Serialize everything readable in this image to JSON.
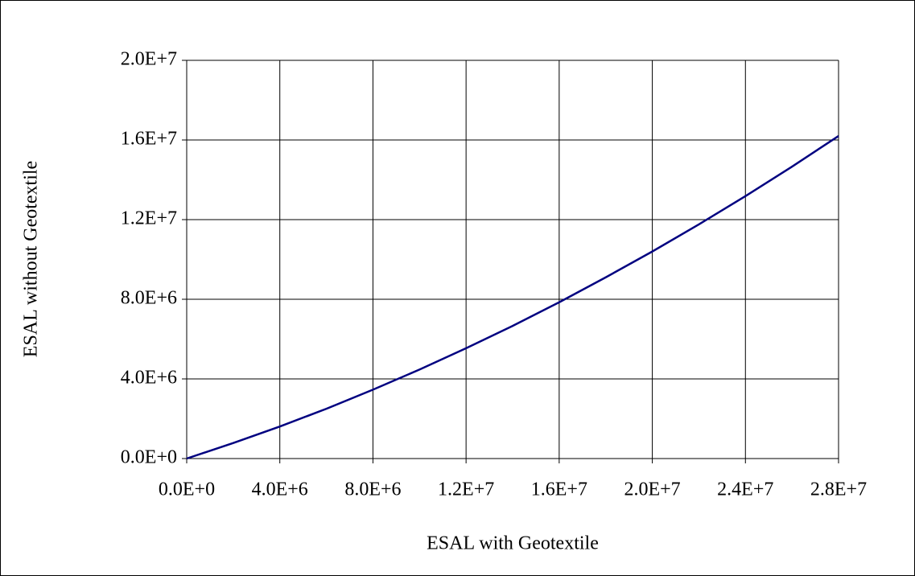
{
  "chart_data": {
    "type": "line",
    "x_label": "ESAL with Geotextile",
    "y_label": "ESAL without Geotextile",
    "x": [
      0,
      2000000,
      4000000,
      6000000,
      8000000,
      10000000,
      12000000,
      14000000,
      16000000,
      18000000,
      20000000,
      22000000,
      24000000,
      26000000,
      28000000
    ],
    "series": [
      {
        "color": "#000080",
        "values": [
          0,
          780000,
          1610000,
          2500000,
          3460000,
          4470000,
          5540000,
          6660000,
          7850000,
          9100000,
          10400000,
          11760000,
          13180000,
          14660000,
          16200000
        ]
      }
    ],
    "xlim": [
      0,
      28000000
    ],
    "ylim": [
      0,
      20000000
    ],
    "xticks": [
      {
        "value": 0,
        "label": "0.0E+0"
      },
      {
        "value": 4000000,
        "label": "4.0E+6"
      },
      {
        "value": 8000000,
        "label": "8.0E+6"
      },
      {
        "value": 12000000,
        "label": "1.2E+7"
      },
      {
        "value": 16000000,
        "label": "1.6E+7"
      },
      {
        "value": 20000000,
        "label": "2.0E+7"
      },
      {
        "value": 24000000,
        "label": "2.4E+7"
      },
      {
        "value": 28000000,
        "label": "2.8E+7"
      }
    ],
    "yticks": [
      {
        "value": 0,
        "label": "0.0E+0"
      },
      {
        "value": 4000000,
        "label": "4.0E+6"
      },
      {
        "value": 8000000,
        "label": "8.0E+6"
      },
      {
        "value": 12000000,
        "label": "1.2E+7"
      },
      {
        "value": 16000000,
        "label": "1.6E+7"
      },
      {
        "value": 20000000,
        "label": "2.0E+7"
      }
    ],
    "grid": true
  }
}
